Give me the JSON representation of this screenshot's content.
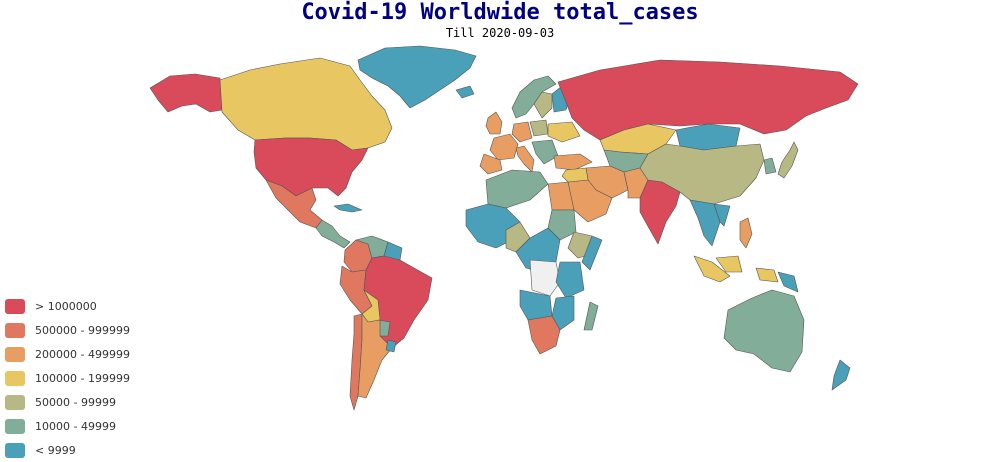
{
  "title": "Covid-19 Worldwide total_cases",
  "subtitle": "Till 2020-09-03",
  "colors": {
    "c1": "#d94a5a",
    "c2": "#e07860",
    "c3": "#e89e62",
    "c4": "#e8c662",
    "c5": "#b8b884",
    "c6": "#82ad98",
    "c7": "#4aa0b8",
    "none": "#f0f0f0"
  },
  "legend": [
    {
      "label": "> 1000000",
      "color": "#d94a5a"
    },
    {
      "label": "500000 - 999999",
      "color": "#e07860"
    },
    {
      "label": "200000 - 499999",
      "color": "#e89e62"
    },
    {
      "label": "100000 - 199999",
      "color": "#e8c662"
    },
    {
      "label": "50000 - 99999",
      "color": "#b8b884"
    },
    {
      "label": "10000 - 49999",
      "color": "#82ad98"
    },
    {
      "label": "< 9999",
      "color": "#4aa0b8"
    }
  ]
}
